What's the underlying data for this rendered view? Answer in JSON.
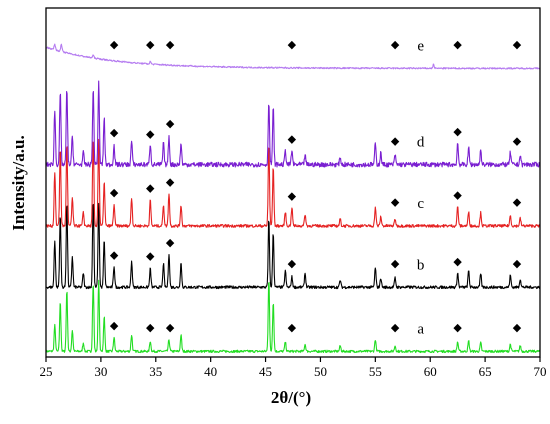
{
  "chart_data": {
    "type": "line",
    "title": "",
    "xlabel": "2θ/(°)",
    "ylabel": "Intensity/a.u.",
    "xlim": [
      25,
      70
    ],
    "ylim": [
      0,
      7.4
    ],
    "x_ticks": [
      25,
      30,
      35,
      40,
      45,
      50,
      55,
      60,
      65,
      70
    ],
    "grid": false,
    "legend": "none",
    "marker_symbol": "◆",
    "marker_positions": [
      31.2,
      34.5,
      36.3,
      47.4,
      56.8,
      62.5,
      67.9
    ],
    "series": [
      {
        "name": "a",
        "color": "#22dd22",
        "baseline": 0.12,
        "noise": 0.025,
        "peaks": [
          [
            25.8,
            0.55
          ],
          [
            26.3,
            1.05
          ],
          [
            26.9,
            1.3
          ],
          [
            27.4,
            0.45
          ],
          [
            28.4,
            0.18
          ],
          [
            29.3,
            1.45
          ],
          [
            29.8,
            1.5
          ],
          [
            30.3,
            0.75
          ],
          [
            31.2,
            0.3
          ],
          [
            32.8,
            0.35
          ],
          [
            34.5,
            0.22
          ],
          [
            36.2,
            0.25
          ],
          [
            37.3,
            0.35
          ],
          [
            45.3,
            1.55
          ],
          [
            45.7,
            1.05
          ],
          [
            46.8,
            0.2
          ],
          [
            48.6,
            0.15
          ],
          [
            51.8,
            0.12
          ],
          [
            55.0,
            0.25
          ],
          [
            56.8,
            0.12
          ],
          [
            62.5,
            0.2
          ],
          [
            63.5,
            0.22
          ],
          [
            64.6,
            0.18
          ],
          [
            67.3,
            0.15
          ],
          [
            68.2,
            0.12
          ]
        ]
      },
      {
        "name": "b",
        "color": "#000000",
        "baseline": 1.48,
        "noise": 0.03,
        "peaks": [
          [
            25.8,
            1.0
          ],
          [
            26.3,
            1.55
          ],
          [
            26.9,
            1.8
          ],
          [
            27.4,
            0.65
          ],
          [
            28.4,
            0.3
          ],
          [
            29.3,
            1.85
          ],
          [
            29.8,
            1.8
          ],
          [
            30.3,
            1.0
          ],
          [
            31.2,
            0.45
          ],
          [
            32.8,
            0.55
          ],
          [
            34.5,
            0.4
          ],
          [
            35.7,
            0.5
          ],
          [
            36.2,
            0.72
          ],
          [
            37.3,
            0.52
          ],
          [
            45.3,
            1.45
          ],
          [
            45.7,
            1.15
          ],
          [
            46.8,
            0.35
          ],
          [
            47.4,
            0.22
          ],
          [
            48.6,
            0.3
          ],
          [
            51.8,
            0.15
          ],
          [
            55.0,
            0.42
          ],
          [
            55.5,
            0.2
          ],
          [
            56.8,
            0.2
          ],
          [
            62.5,
            0.3
          ],
          [
            63.5,
            0.35
          ],
          [
            64.6,
            0.28
          ],
          [
            67.3,
            0.25
          ],
          [
            68.2,
            0.18
          ]
        ]
      },
      {
        "name": "c",
        "color": "#e52222",
        "baseline": 2.78,
        "noise": 0.03,
        "peaks": [
          [
            25.8,
            1.15
          ],
          [
            26.3,
            1.65
          ],
          [
            26.9,
            1.75
          ],
          [
            27.4,
            0.6
          ],
          [
            28.4,
            0.28
          ],
          [
            29.3,
            1.85
          ],
          [
            29.8,
            1.85
          ],
          [
            30.3,
            0.95
          ],
          [
            31.2,
            0.45
          ],
          [
            32.8,
            0.6
          ],
          [
            34.5,
            0.55
          ],
          [
            35.7,
            0.45
          ],
          [
            36.2,
            0.7
          ],
          [
            37.3,
            0.45
          ],
          [
            45.3,
            1.75
          ],
          [
            45.7,
            1.25
          ],
          [
            46.8,
            0.3
          ],
          [
            47.4,
            0.4
          ],
          [
            48.6,
            0.25
          ],
          [
            51.8,
            0.15
          ],
          [
            55.0,
            0.4
          ],
          [
            55.5,
            0.2
          ],
          [
            56.8,
            0.15
          ],
          [
            62.5,
            0.42
          ],
          [
            63.5,
            0.3
          ],
          [
            64.6,
            0.28
          ],
          [
            67.3,
            0.22
          ],
          [
            68.2,
            0.16
          ]
        ]
      },
      {
        "name": "d",
        "color": "#7a1fd1",
        "baseline": 4.08,
        "noise": 0.05,
        "peaks": [
          [
            25.8,
            1.15
          ],
          [
            26.3,
            1.55
          ],
          [
            26.9,
            1.6
          ],
          [
            27.4,
            0.6
          ],
          [
            28.4,
            0.25
          ],
          [
            29.3,
            1.6
          ],
          [
            29.8,
            1.75
          ],
          [
            30.3,
            1.0
          ],
          [
            31.2,
            0.4
          ],
          [
            32.8,
            0.5
          ],
          [
            34.5,
            0.45
          ],
          [
            35.7,
            0.45
          ],
          [
            36.2,
            0.6
          ],
          [
            37.3,
            0.45
          ],
          [
            45.3,
            1.35
          ],
          [
            45.7,
            1.2
          ],
          [
            46.8,
            0.3
          ],
          [
            47.4,
            0.3
          ],
          [
            48.6,
            0.2
          ],
          [
            51.8,
            0.15
          ],
          [
            55.0,
            0.45
          ],
          [
            55.5,
            0.25
          ],
          [
            56.8,
            0.2
          ],
          [
            62.5,
            0.45
          ],
          [
            63.5,
            0.35
          ],
          [
            64.6,
            0.3
          ],
          [
            67.3,
            0.25
          ],
          [
            68.2,
            0.2
          ]
        ]
      },
      {
        "name": "e",
        "color": "#b57cf0",
        "baseline": 6.12,
        "noise": 0.015,
        "background_rise": 0.45,
        "background_decay": 6.0,
        "peaks": [
          [
            25.8,
            0.12
          ],
          [
            26.4,
            0.15
          ],
          [
            29.3,
            0.06
          ],
          [
            34.5,
            0.05
          ],
          [
            60.3,
            0.08
          ]
        ]
      }
    ]
  }
}
